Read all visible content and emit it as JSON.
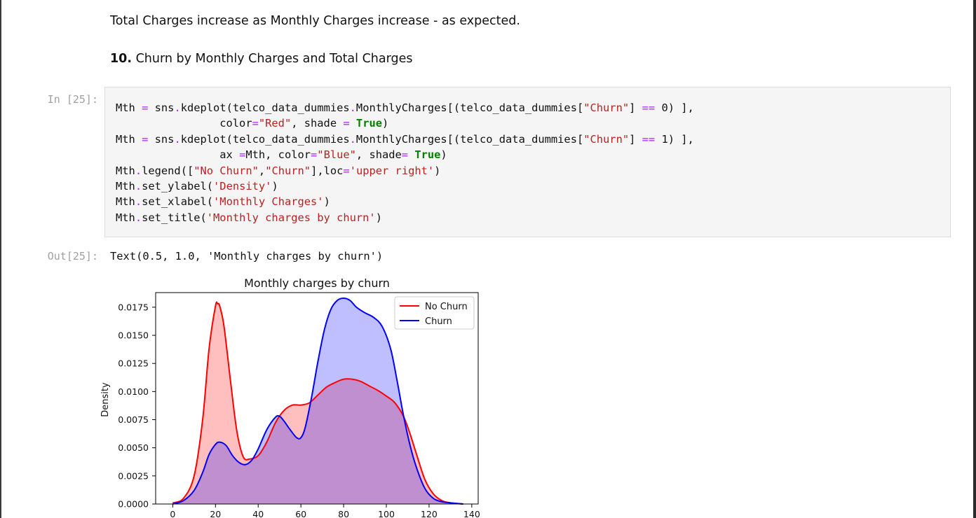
{
  "notebook": {
    "markdown_1": "Total Charges increase as Monthly Charges increase - as expected.",
    "markdown_2_number": "10.",
    "markdown_2_text": " Churn by Monthly Charges and Total Charges",
    "input_prompt": "In [25]:",
    "output_prompt": "Out[25]:",
    "output_text": "Text(0.5, 1.0, 'Monthly charges by churn')",
    "code_lines": [
      [
        [
          "t",
          "Mth "
        ],
        [
          "op",
          "="
        ],
        [
          "t",
          " sns"
        ],
        [
          "op",
          "."
        ],
        [
          "t",
          "kdeplot(telco_data_dummies"
        ],
        [
          "op",
          "."
        ],
        [
          "t",
          "MonthlyCharges[(telco_data_dummies["
        ],
        [
          "str",
          "\"Churn\""
        ],
        [
          "t",
          "] "
        ],
        [
          "op",
          "=="
        ],
        [
          "t",
          " 0) ],"
        ]
      ],
      [
        [
          "t",
          "                color"
        ],
        [
          "op",
          "="
        ],
        [
          "str",
          "\"Red\""
        ],
        [
          "t",
          ", shade "
        ],
        [
          "op",
          "="
        ],
        [
          "t",
          " "
        ],
        [
          "kw",
          "True"
        ],
        [
          "t",
          ")"
        ]
      ],
      [
        [
          "t",
          "Mth "
        ],
        [
          "op",
          "="
        ],
        [
          "t",
          " sns"
        ],
        [
          "op",
          "."
        ],
        [
          "t",
          "kdeplot(telco_data_dummies"
        ],
        [
          "op",
          "."
        ],
        [
          "t",
          "MonthlyCharges[(telco_data_dummies["
        ],
        [
          "str",
          "\"Churn\""
        ],
        [
          "t",
          "] "
        ],
        [
          "op",
          "=="
        ],
        [
          "t",
          " 1) ],"
        ]
      ],
      [
        [
          "t",
          "                ax "
        ],
        [
          "op",
          "="
        ],
        [
          "t",
          "Mth, color"
        ],
        [
          "op",
          "="
        ],
        [
          "str",
          "\"Blue\""
        ],
        [
          "t",
          ", shade"
        ],
        [
          "op",
          "="
        ],
        [
          "t",
          " "
        ],
        [
          "kw",
          "True"
        ],
        [
          "t",
          ")"
        ]
      ],
      [
        [
          "t",
          "Mth"
        ],
        [
          "op",
          "."
        ],
        [
          "t",
          "legend(["
        ],
        [
          "str",
          "\"No Churn\""
        ],
        [
          "t",
          ","
        ],
        [
          "str",
          "\"Churn\""
        ],
        [
          "t",
          "],loc"
        ],
        [
          "op",
          "="
        ],
        [
          "str",
          "'upper right'"
        ],
        [
          "t",
          ")"
        ]
      ],
      [
        [
          "t",
          "Mth"
        ],
        [
          "op",
          "."
        ],
        [
          "t",
          "set_ylabel("
        ],
        [
          "str",
          "'Density'"
        ],
        [
          "t",
          ")"
        ]
      ],
      [
        [
          "t",
          "Mth"
        ],
        [
          "op",
          "."
        ],
        [
          "t",
          "set_xlabel("
        ],
        [
          "str",
          "'Monthly Charges'"
        ],
        [
          "t",
          ")"
        ]
      ],
      [
        [
          "t",
          "Mth"
        ],
        [
          "op",
          "."
        ],
        [
          "t",
          "set_title("
        ],
        [
          "str",
          "'Monthly charges by churn'"
        ],
        [
          "t",
          ")"
        ]
      ]
    ]
  },
  "chart_data": {
    "type": "area",
    "title": "Monthly charges by churn",
    "ylabel": "Density",
    "xlim": [
      -8,
      143
    ],
    "ylim": [
      0,
      0.0188
    ],
    "xticks": [
      0,
      20,
      40,
      60,
      80,
      100,
      120,
      140
    ],
    "xtick_labels": [
      "0",
      "20",
      "40",
      "60",
      "80",
      "100",
      "120",
      "140"
    ],
    "yticks": [
      0,
      0.0025,
      0.005,
      0.0075,
      0.01,
      0.0125,
      0.015,
      0.0175
    ],
    "ytick_labels": [
      "0.0000",
      "0.0025",
      "0.0050",
      "0.0075",
      "0.0100",
      "0.0125",
      "0.0150",
      "0.0175"
    ],
    "legend_position": "upper right",
    "series": [
      {
        "name": "No Churn",
        "color": "#ff0000",
        "fill": "#ff0000",
        "x": [
          0,
          5,
          10,
          14,
          17,
          20,
          21,
          22,
          24,
          27,
          30,
          33,
          36,
          40,
          44,
          48,
          52,
          56,
          60,
          64,
          68,
          72,
          76,
          80,
          84,
          88,
          92,
          96,
          100,
          104,
          108,
          111,
          114,
          118,
          122,
          126,
          130,
          136
        ],
        "y": [
          0.0001,
          0.0005,
          0.0025,
          0.0075,
          0.0138,
          0.0176,
          0.0178,
          0.0176,
          0.0158,
          0.011,
          0.0065,
          0.0042,
          0.004,
          0.0043,
          0.0055,
          0.0072,
          0.0083,
          0.0088,
          0.0088,
          0.009,
          0.0097,
          0.0104,
          0.0108,
          0.0111,
          0.0111,
          0.0109,
          0.0105,
          0.0101,
          0.0096,
          0.009,
          0.0078,
          0.0063,
          0.0045,
          0.0022,
          0.0009,
          0.0003,
          0.0001,
          0
        ]
      },
      {
        "name": "Churn",
        "color": "#0000ff",
        "fill": "#0000ff",
        "x": [
          0,
          5,
          10,
          14,
          17,
          20,
          22,
          25,
          28,
          31,
          34,
          37,
          40,
          44,
          48,
          50,
          52,
          55,
          58,
          60,
          62,
          65,
          68,
          71,
          74,
          77,
          80,
          83,
          86,
          90,
          94,
          98,
          102,
          105,
          108,
          111,
          114,
          118,
          122,
          126,
          130,
          136
        ],
        "y": [
          0,
          0.0003,
          0.0012,
          0.0028,
          0.0044,
          0.0053,
          0.0055,
          0.0052,
          0.0043,
          0.0037,
          0.0035,
          0.0039,
          0.0049,
          0.0066,
          0.0077,
          0.0078,
          0.0074,
          0.0066,
          0.0059,
          0.0059,
          0.0068,
          0.0095,
          0.0127,
          0.0155,
          0.0173,
          0.0181,
          0.0183,
          0.0181,
          0.0175,
          0.017,
          0.0166,
          0.0158,
          0.0138,
          0.011,
          0.0079,
          0.0053,
          0.0033,
          0.0014,
          0.0005,
          0.0002,
          0.0001,
          0
        ]
      }
    ]
  }
}
